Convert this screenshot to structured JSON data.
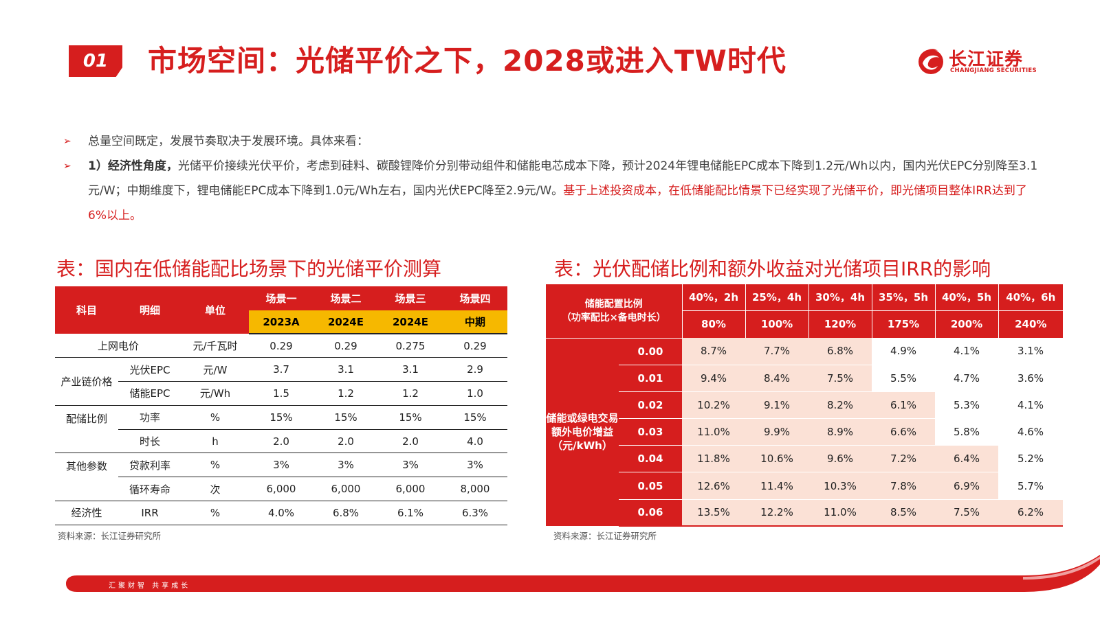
{
  "header": {
    "section_number": "01",
    "title": "市场空间：光储平价之下，2028或进入TW时代",
    "logo_cn": "长江证券",
    "logo_en": "CHANGJIANG SECURITIES"
  },
  "bullets": {
    "b1": "总量空间既定，发展节奏取决于发展环境。具体来看：",
    "b2_bold": "1）经济性角度，",
    "b2_text": "光储平价接续光伏平价，考虑到硅料、碳酸锂降价分别带动组件和储能电芯成本下降，预计2024年锂电储能EPC成本下降到1.2元/Wh以内，国内光伏EPC分别降至3.1元/W；中期维度下，锂电储能EPC成本下降到1.0元/Wh左右，国内光伏EPC降至2.9元/W。",
    "b2_red": "基于上述投资成本，在低储能配比情景下已经实现了光储平价，即光储项目整体IRR达到了6%以上。"
  },
  "left_table": {
    "title": "表：国内在低储能配比场景下的光储平价测算",
    "headers": {
      "subject": "科目",
      "detail": "明细",
      "unit": "单位"
    },
    "scenarios": [
      "场景一",
      "场景二",
      "场景三",
      "场景四"
    ],
    "years": [
      "2023A",
      "2024E",
      "2024E",
      "中期"
    ],
    "rows": [
      {
        "group": "",
        "detail": "上网电价",
        "unit": "元/千瓦时",
        "values": [
          "0.29",
          "0.29",
          "0.275",
          "0.29"
        ]
      },
      {
        "group": "产业链价格",
        "detail": "光伏EPC",
        "unit": "元/W",
        "values": [
          "3.7",
          "3.1",
          "3.1",
          "2.9"
        ]
      },
      {
        "group": "",
        "detail": "储能EPC",
        "unit": "元/Wh",
        "values": [
          "1.5",
          "1.2",
          "1.2",
          "1.0"
        ]
      },
      {
        "group": "配储比例",
        "detail": "功率",
        "unit": "%",
        "values": [
          "15%",
          "15%",
          "15%",
          "15%"
        ]
      },
      {
        "group": "",
        "detail": "时长",
        "unit": "h",
        "values": [
          "2.0",
          "2.0",
          "2.0",
          "4.0"
        ]
      },
      {
        "group": "其他参数",
        "detail": "贷款利率",
        "unit": "%",
        "values": [
          "3%",
          "3%",
          "3%",
          "3%"
        ]
      },
      {
        "group": "",
        "detail": "循环寿命",
        "unit": "次",
        "values": [
          "6,000",
          "6,000",
          "6,000",
          "8,000"
        ]
      },
      {
        "group": "经济性",
        "detail": "IRR",
        "unit": "%",
        "values": [
          "4.0%",
          "6.8%",
          "6.1%",
          "6.3%"
        ]
      }
    ],
    "source": "资料来源：长江证券研究所"
  },
  "right_table": {
    "title": "表：光伏配储比例和额外收益对光储项目IRR的影响",
    "corner_line1": "储能配置比例",
    "corner_line2": "（功率配比×备电时长）",
    "config": [
      "40%，2h",
      "25%，4h",
      "30%，4h",
      "35%，5h",
      "40%，5h",
      "40%，6h"
    ],
    "ratio": [
      "80%",
      "100%",
      "120%",
      "175%",
      "200%",
      "240%"
    ],
    "side_label": "储能或绿电交易额外电价增益（元/kWh）",
    "rows": [
      {
        "key": "0.00",
        "values": [
          "8.7%",
          "7.7%",
          "6.8%",
          "4.9%",
          "4.1%",
          "3.1%"
        ]
      },
      {
        "key": "0.01",
        "values": [
          "9.4%",
          "8.4%",
          "7.5%",
          "5.5%",
          "4.7%",
          "3.6%"
        ]
      },
      {
        "key": "0.02",
        "values": [
          "10.2%",
          "9.1%",
          "8.2%",
          "6.1%",
          "5.3%",
          "4.1%"
        ]
      },
      {
        "key": "0.03",
        "values": [
          "11.0%",
          "9.9%",
          "8.9%",
          "6.6%",
          "5.8%",
          "4.6%"
        ]
      },
      {
        "key": "0.04",
        "values": [
          "11.8%",
          "10.6%",
          "9.6%",
          "7.2%",
          "6.4%",
          "5.2%"
        ]
      },
      {
        "key": "0.05",
        "values": [
          "12.6%",
          "11.4%",
          "10.3%",
          "7.8%",
          "6.9%",
          "5.7%"
        ]
      },
      {
        "key": "0.06",
        "values": [
          "13.5%",
          "12.2%",
          "11.0%",
          "8.5%",
          "7.5%",
          "6.2%"
        ]
      }
    ],
    "source": "资料来源：长江证券研究所"
  },
  "footer": {
    "slogan": "汇聚财智  共享成长"
  },
  "colors": {
    "brand_red": "#d61e1e",
    "year_yellow": "#f6b800",
    "highlight_peach": "#fbe1d6"
  }
}
